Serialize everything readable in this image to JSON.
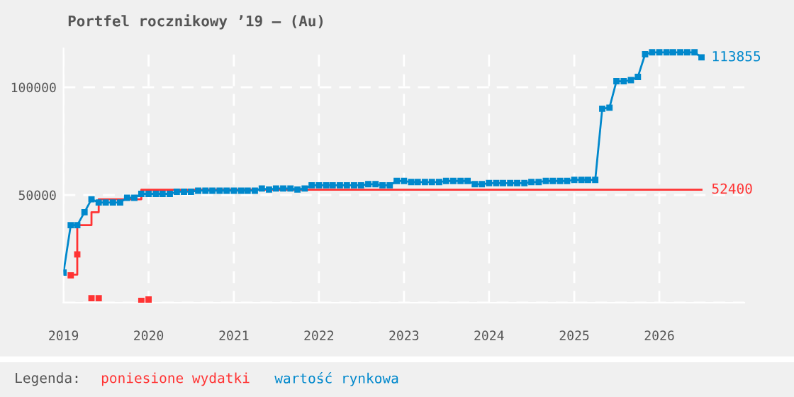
{
  "chart_data": {
    "type": "line",
    "title": "Portfel rocznikowy ’19 – (Au)",
    "legend_title": "Legenda:",
    "legend": "bottom",
    "grid": true,
    "xlim": [
      "2019-01",
      "2027-01"
    ],
    "xticks": [
      {
        "value": "2019-01",
        "label": "2019"
      },
      {
        "value": "2020-01",
        "label": "2020"
      },
      {
        "value": "2021-01",
        "label": "2021"
      },
      {
        "value": "2022-01",
        "label": "2022"
      },
      {
        "value": "2023-01",
        "label": "2023"
      },
      {
        "value": "2024-01",
        "label": "2024"
      },
      {
        "value": "2025-01",
        "label": "2025"
      },
      {
        "value": "2026-01",
        "label": "2026"
      }
    ],
    "ylim": [
      0,
      118000
    ],
    "yticks": [
      {
        "value": 0,
        "label": null
      },
      50000,
      100000
    ],
    "series": [
      {
        "type": "step",
        "name": "poniesione wydatki",
        "color": "#ff3333",
        "marker": "none",
        "x": [
          "2019-02",
          "2019-03",
          "2019-05",
          "2019-06",
          "2019-12",
          "2026-07"
        ],
        "values": [
          13000,
          36000,
          42000,
          48000,
          52400,
          52400
        ],
        "value_labels": [
          null,
          null,
          null,
          null,
          null,
          "52400"
        ]
      },
      {
        "type": "scatter",
        "color": "#ff3333",
        "marker": "square",
        "x": [
          "2019-02",
          "2019-03",
          "2019-05",
          "2019-06",
          "2019-12",
          "2020-01"
        ],
        "values": [
          12700,
          22400,
          2100,
          2100,
          800,
          1500
        ]
      },
      {
        "name": "wartość rynkowa",
        "color": "#0088cc",
        "marker": "square",
        "x": [
          "2019-01",
          "2019-02",
          "2019-03",
          "2019-04",
          "2019-05",
          "2019-06",
          "2019-07",
          "2019-08",
          "2019-09",
          "2019-10",
          "2019-11",
          "2019-12",
          "2020-01",
          "2020-02",
          "2020-03",
          "2020-04",
          "2020-05",
          "2020-06",
          "2020-07",
          "2020-08",
          "2020-09",
          "2020-10",
          "2020-11",
          "2020-12",
          "2021-01",
          "2021-02",
          "2021-03",
          "2021-04",
          "2021-05",
          "2021-06",
          "2021-07",
          "2021-08",
          "2021-09",
          "2021-10",
          "2021-11",
          "2021-12",
          "2022-01",
          "2022-02",
          "2022-03",
          "2022-04",
          "2022-05",
          "2022-06",
          "2022-07",
          "2022-08",
          "2022-09",
          "2022-10",
          "2022-11",
          "2022-12",
          "2023-01",
          "2023-02",
          "2023-03",
          "2023-04",
          "2023-05",
          "2023-06",
          "2023-07",
          "2023-08",
          "2023-09",
          "2023-10",
          "2023-11",
          "2023-12",
          "2024-01",
          "2024-02",
          "2024-03",
          "2024-04",
          "2024-05",
          "2024-06",
          "2024-07",
          "2024-08",
          "2024-09",
          "2024-10",
          "2024-11",
          "2024-12",
          "2025-01",
          "2025-02",
          "2025-03",
          "2025-04",
          "2025-05",
          "2025-06",
          "2025-07",
          "2025-08",
          "2025-09",
          "2025-10",
          "2025-11",
          "2025-12",
          "2026-01",
          "2026-02",
          "2026-03",
          "2026-04",
          "2026-05",
          "2026-06",
          "2026-07"
        ],
        "values": [
          14000,
          36000,
          36000,
          42000,
          48000,
          46500,
          46500,
          46500,
          46500,
          48700,
          48700,
          50500,
          50500,
          50500,
          50500,
          50500,
          51500,
          51500,
          51500,
          52000,
          52000,
          52000,
          52000,
          52000,
          52000,
          52000,
          52000,
          52000,
          53000,
          52500,
          53000,
          53000,
          53000,
          52500,
          53000,
          54500,
          54500,
          54500,
          54500,
          54500,
          54500,
          54500,
          54500,
          55000,
          55000,
          54500,
          54500,
          56500,
          56500,
          56000,
          56000,
          56000,
          56000,
          56000,
          56500,
          56500,
          56500,
          56500,
          55000,
          55000,
          55500,
          55500,
          55500,
          55500,
          55500,
          55500,
          56000,
          56000,
          56500,
          56500,
          56500,
          56500,
          57000,
          57000,
          57000,
          57000,
          90000,
          90500,
          102800,
          102800,
          103300,
          104800,
          115300,
          116200,
          116200,
          116200,
          116200,
          116200,
          116200,
          116200,
          113855
        ],
        "value_labels": [
          null,
          null,
          null,
          null,
          null,
          null,
          null,
          null,
          null,
          null,
          null,
          null,
          null,
          null,
          null,
          null,
          null,
          null,
          null,
          null,
          null,
          null,
          null,
          null,
          null,
          null,
          null,
          null,
          null,
          null,
          null,
          null,
          null,
          null,
          null,
          null,
          null,
          null,
          null,
          null,
          null,
          null,
          null,
          null,
          null,
          null,
          null,
          null,
          null,
          null,
          null,
          null,
          null,
          null,
          null,
          null,
          null,
          null,
          null,
          null,
          null,
          null,
          null,
          null,
          null,
          null,
          null,
          null,
          null,
          null,
          null,
          null,
          null,
          null,
          null,
          null,
          null,
          null,
          null,
          null,
          null,
          null,
          null,
          null,
          null,
          null,
          null,
          null,
          null,
          null,
          "113855"
        ]
      }
    ]
  }
}
